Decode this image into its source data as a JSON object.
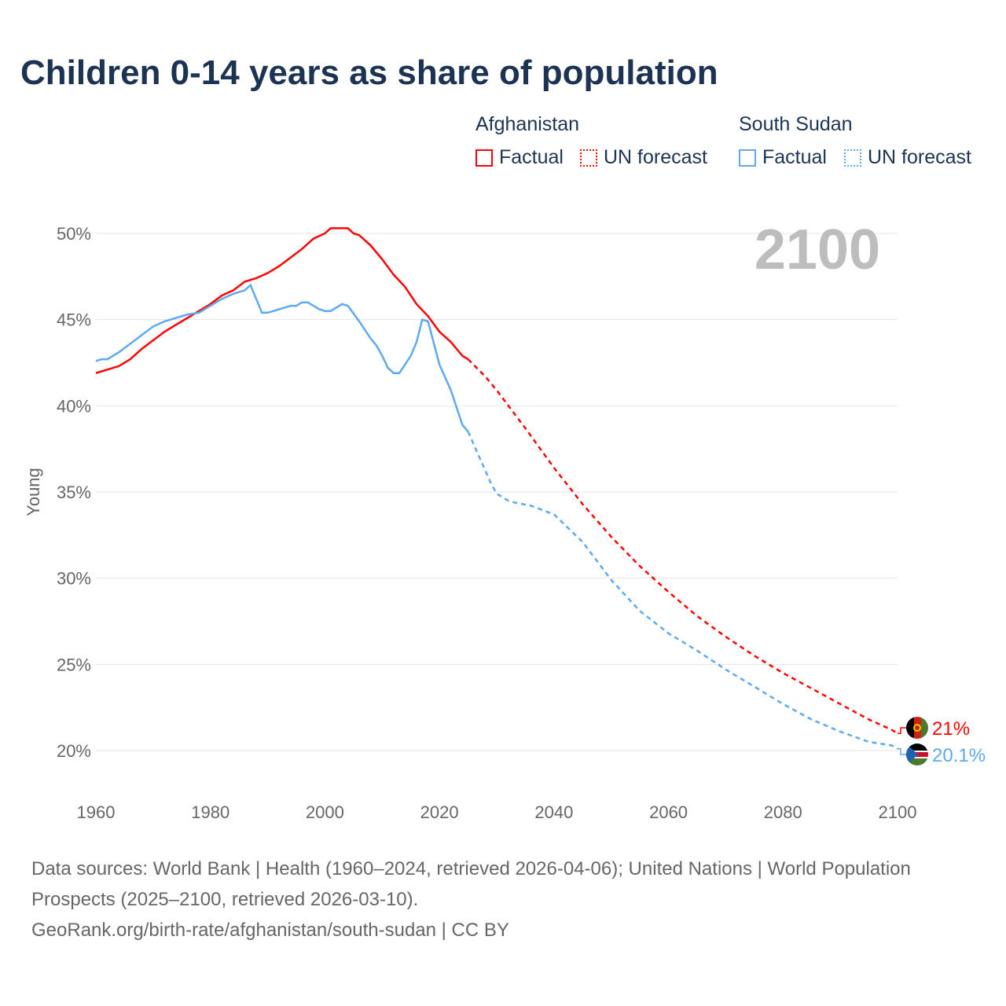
{
  "chart_data": {
    "type": "line",
    "title": "Children 0-14 years as share of population",
    "ylabel": "Young",
    "xlim": [
      1960,
      2100
    ],
    "ylim": [
      20,
      50
    ],
    "x_ticks": [
      "1960",
      "1980",
      "2000",
      "2020",
      "2040",
      "2060",
      "2080",
      "2100"
    ],
    "y_ticks": [
      "20%",
      "25%",
      "30%",
      "35%",
      "40%",
      "45%",
      "50%"
    ],
    "year_label": "2100",
    "legend": {
      "groups": [
        {
          "name": "Afghanistan",
          "items": [
            "Factual",
            "UN forecast"
          ]
        },
        {
          "name": "South Sudan",
          "items": [
            "Factual",
            "UN forecast"
          ]
        }
      ]
    },
    "series": [
      {
        "name": "Afghanistan",
        "color": "#ff0000",
        "end_label": "21%",
        "factual": [
          [
            1960,
            41.9
          ],
          [
            1962,
            42.1
          ],
          [
            1964,
            42.3
          ],
          [
            1966,
            42.7
          ],
          [
            1968,
            43.3
          ],
          [
            1970,
            43.8
          ],
          [
            1972,
            44.3
          ],
          [
            1974,
            44.7
          ],
          [
            1976,
            45.1
          ],
          [
            1978,
            45.5
          ],
          [
            1980,
            45.9
          ],
          [
            1982,
            46.4
          ],
          [
            1984,
            46.7
          ],
          [
            1986,
            47.2
          ],
          [
            1988,
            47.4
          ],
          [
            1990,
            47.7
          ],
          [
            1992,
            48.1
          ],
          [
            1994,
            48.6
          ],
          [
            1996,
            49.1
          ],
          [
            1998,
            49.7
          ],
          [
            2000,
            50.0
          ],
          [
            2001,
            50.3
          ],
          [
            2004,
            50.3
          ],
          [
            2005,
            50.0
          ],
          [
            2006,
            49.9
          ],
          [
            2008,
            49.3
          ],
          [
            2010,
            48.5
          ],
          [
            2012,
            47.6
          ],
          [
            2014,
            46.9
          ],
          [
            2016,
            45.9
          ],
          [
            2018,
            45.2
          ],
          [
            2020,
            44.3
          ],
          [
            2022,
            43.7
          ],
          [
            2024,
            42.9
          ],
          [
            2025,
            42.7
          ]
        ],
        "forecast": [
          [
            2025,
            42.7
          ],
          [
            2028,
            41.7
          ],
          [
            2030,
            40.9
          ],
          [
            2035,
            38.7
          ],
          [
            2040,
            36.4
          ],
          [
            2045,
            34.3
          ],
          [
            2050,
            32.4
          ],
          [
            2055,
            30.7
          ],
          [
            2060,
            29.2
          ],
          [
            2065,
            27.8
          ],
          [
            2070,
            26.6
          ],
          [
            2075,
            25.5
          ],
          [
            2080,
            24.5
          ],
          [
            2085,
            23.6
          ],
          [
            2090,
            22.7
          ],
          [
            2095,
            21.8
          ],
          [
            2099,
            21.2
          ],
          [
            2100,
            21.0
          ]
        ]
      },
      {
        "name": "South Sudan",
        "color": "#5ea9ef",
        "end_label": "20.1%",
        "factual": [
          [
            1960,
            42.6
          ],
          [
            1961,
            42.7
          ],
          [
            1962,
            42.7
          ],
          [
            1964,
            43.1
          ],
          [
            1966,
            43.6
          ],
          [
            1968,
            44.1
          ],
          [
            1970,
            44.6
          ],
          [
            1972,
            44.9
          ],
          [
            1974,
            45.1
          ],
          [
            1976,
            45.3
          ],
          [
            1978,
            45.4
          ],
          [
            1980,
            45.8
          ],
          [
            1982,
            46.2
          ],
          [
            1984,
            46.5
          ],
          [
            1986,
            46.7
          ],
          [
            1987,
            47.0
          ],
          [
            1989,
            45.4
          ],
          [
            1990,
            45.4
          ],
          [
            1992,
            45.6
          ],
          [
            1994,
            45.8
          ],
          [
            1995,
            45.8
          ],
          [
            1996,
            46.0
          ],
          [
            1997,
            46.0
          ],
          [
            1999,
            45.6
          ],
          [
            2000,
            45.5
          ],
          [
            2001,
            45.5
          ],
          [
            2003,
            45.9
          ],
          [
            2004,
            45.8
          ],
          [
            2006,
            44.9
          ],
          [
            2008,
            43.9
          ],
          [
            2009,
            43.5
          ],
          [
            2010,
            42.9
          ],
          [
            2011,
            42.2
          ],
          [
            2012,
            41.9
          ],
          [
            2013,
            41.9
          ],
          [
            2015,
            42.9
          ],
          [
            2016,
            43.7
          ],
          [
            2017,
            45.0
          ],
          [
            2018,
            44.9
          ],
          [
            2020,
            42.4
          ],
          [
            2022,
            40.9
          ],
          [
            2024,
            38.9
          ],
          [
            2025,
            38.5
          ]
        ],
        "forecast": [
          [
            2025,
            38.5
          ],
          [
            2027,
            37.0
          ],
          [
            2029,
            35.5
          ],
          [
            2030,
            34.9
          ],
          [
            2032,
            34.5
          ],
          [
            2033,
            34.4
          ],
          [
            2036,
            34.2
          ],
          [
            2040,
            33.7
          ],
          [
            2045,
            32.1
          ],
          [
            2050,
            29.9
          ],
          [
            2055,
            28.1
          ],
          [
            2060,
            26.8
          ],
          [
            2065,
            25.8
          ],
          [
            2070,
            24.7
          ],
          [
            2075,
            23.7
          ],
          [
            2080,
            22.7
          ],
          [
            2085,
            21.8
          ],
          [
            2090,
            21.1
          ],
          [
            2095,
            20.5
          ],
          [
            2099,
            20.3
          ],
          [
            2100,
            20.1
          ]
        ]
      }
    ]
  },
  "legend_labels": {
    "afg": "Afghanistan",
    "ssd": "South Sudan",
    "factual": "Factual",
    "forecast": "UN forecast"
  },
  "source": {
    "line1": "Data sources: World Bank | Health (1960–2024, retrieved 2026-04-06); United Nations | World Population Prospects (2025–2100, retrieved 2026-03-10).",
    "line2": "GeoRank.org/birth-rate/afghanistan/south-sudan | CC BY"
  }
}
